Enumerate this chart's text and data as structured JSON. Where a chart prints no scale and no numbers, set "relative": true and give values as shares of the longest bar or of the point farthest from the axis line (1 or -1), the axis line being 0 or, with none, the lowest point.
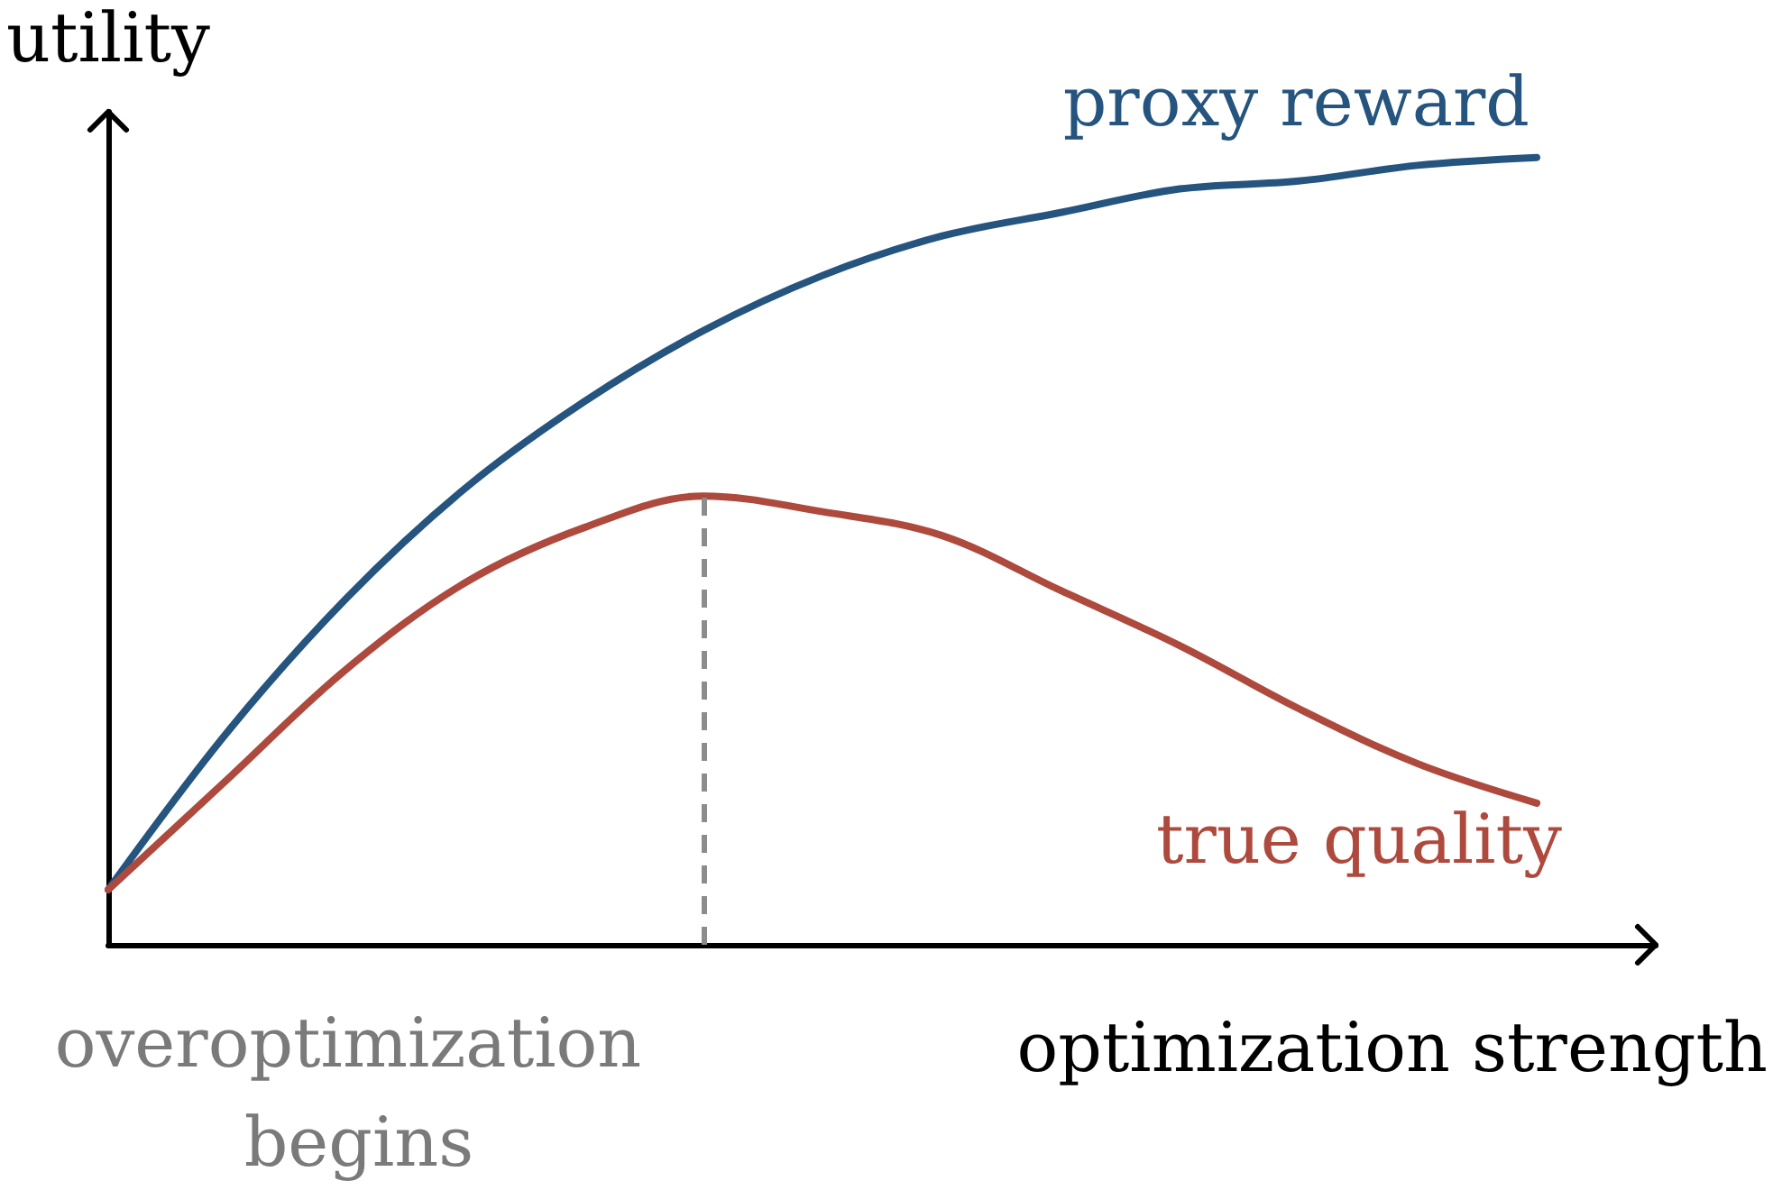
{
  "chart_data": {
    "type": "line",
    "xlabel": "optimization strength",
    "ylabel": "utility",
    "categories": [
      null,
      null,
      null,
      null,
      null,
      null,
      null,
      null,
      null,
      null,
      null,
      null,
      null,
      null
    ],
    "relative": true,
    "tick_labels": false,
    "marker": "none",
    "line_style": "solid",
    "series": [
      {
        "name": "proxy reward",
        "color": "#25547f",
        "values": [
          0.07,
          0.27,
          0.44,
          0.58,
          0.69,
          0.78,
          0.85,
          0.9,
          0.93,
          0.96,
          0.97,
          0.99,
          1,
          null
        ]
      },
      {
        "name": "true quality",
        "color": "#ad4a3d",
        "values": [
          0.07,
          0.21,
          0.35,
          0.46,
          0.53,
          0.57,
          0.55,
          0.52,
          0.45,
          0.38,
          0.3,
          0.23,
          0.18,
          null
        ]
      }
    ],
    "annotations": [
      "overoptimization begins"
    ]
  }
}
